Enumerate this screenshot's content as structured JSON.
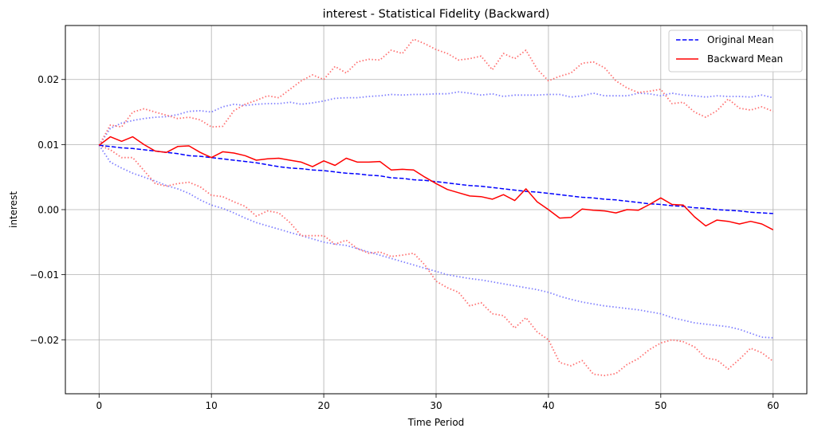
{
  "chart_data": {
    "type": "line",
    "title": "interest - Statistical Fidelity (Backward)",
    "xlabel": "Time Period",
    "ylabel": "interest",
    "xlim": [
      -3,
      63
    ],
    "ylim": [
      -0.0283,
      0.0283
    ],
    "xticks": [
      0,
      10,
      20,
      30,
      40,
      50,
      60
    ],
    "yticks": [
      -0.02,
      -0.01,
      0.0,
      0.01,
      0.02
    ],
    "xtick_labels": [
      "0",
      "10",
      "20",
      "30",
      "40",
      "50",
      "60"
    ],
    "ytick_labels": [
      "−0.02",
      "−0.01",
      "0.00",
      "0.01",
      "0.02"
    ],
    "grid": true,
    "legend_position": "top-right",
    "x": [
      0,
      1,
      2,
      3,
      4,
      5,
      6,
      7,
      8,
      9,
      10,
      11,
      12,
      13,
      14,
      15,
      16,
      17,
      18,
      19,
      20,
      21,
      22,
      23,
      24,
      25,
      26,
      27,
      28,
      29,
      30,
      31,
      32,
      33,
      34,
      35,
      36,
      37,
      38,
      39,
      40,
      41,
      42,
      43,
      44,
      45,
      46,
      47,
      48,
      49,
      50,
      51,
      52,
      53,
      54,
      55,
      56,
      57,
      58,
      59,
      60
    ],
    "series": [
      {
        "name": "Original Mean",
        "style": "dashed",
        "color": "#0000ff",
        "in_legend": true,
        "values": [
          0.0099,
          0.0097,
          0.0095,
          0.0094,
          0.0092,
          0.009,
          0.0088,
          0.0086,
          0.0083,
          0.0082,
          0.008,
          0.0078,
          0.0076,
          0.0074,
          0.0072,
          0.0069,
          0.0066,
          0.0064,
          0.0063,
          0.0061,
          0.006,
          0.0058,
          0.0056,
          0.0055,
          0.0053,
          0.0052,
          0.0049,
          0.0048,
          0.0046,
          0.0045,
          0.0043,
          0.0041,
          0.0039,
          0.0037,
          0.0036,
          0.0034,
          0.0032,
          0.003,
          0.0028,
          0.0027,
          0.0025,
          0.0023,
          0.0021,
          0.0019,
          0.0018,
          0.0016,
          0.0015,
          0.0013,
          0.0011,
          0.0009,
          0.0008,
          0.0006,
          0.0005,
          0.0003,
          0.0002,
          0.0,
          -0.0001,
          -0.0002,
          -0.0004,
          -0.0005,
          -0.0006
        ]
      },
      {
        "name": "Backward Mean",
        "style": "solid",
        "color": "#ff0000",
        "in_legend": true,
        "values": [
          0.0099,
          0.0112,
          0.0105,
          0.0112,
          0.01,
          0.009,
          0.0088,
          0.0097,
          0.0098,
          0.0088,
          0.008,
          0.0089,
          0.0087,
          0.0083,
          0.0076,
          0.0078,
          0.0079,
          0.0076,
          0.0073,
          0.0066,
          0.0075,
          0.0068,
          0.0079,
          0.0073,
          0.0073,
          0.0074,
          0.0061,
          0.0062,
          0.0061,
          0.005,
          0.004,
          0.0031,
          0.0026,
          0.0021,
          0.002,
          0.0016,
          0.0023,
          0.0014,
          0.0032,
          0.0012,
          0.0,
          -0.0013,
          -0.0012,
          0.0001,
          -0.0001,
          -0.0002,
          -0.0005,
          0.0,
          -0.0001,
          0.0008,
          0.0018,
          0.0008,
          0.0007,
          -0.0011,
          -0.0025,
          -0.0016,
          -0.0018,
          -0.0022,
          -0.0018,
          -0.0022,
          -0.0031
        ]
      },
      {
        "name": "",
        "style": "dotted",
        "color": "#8080ff",
        "in_legend": false,
        "values": [
          0.0099,
          0.0125,
          0.0133,
          0.0137,
          0.014,
          0.0142,
          0.0143,
          0.0146,
          0.0151,
          0.0152,
          0.015,
          0.0158,
          0.0162,
          0.016,
          0.0162,
          0.0163,
          0.0163,
          0.0165,
          0.0162,
          0.0164,
          0.0167,
          0.0171,
          0.0172,
          0.0172,
          0.0174,
          0.0175,
          0.0177,
          0.0176,
          0.0177,
          0.0177,
          0.0178,
          0.0178,
          0.0181,
          0.0179,
          0.0176,
          0.0178,
          0.0174,
          0.0176,
          0.0176,
          0.0176,
          0.0177,
          0.0177,
          0.0173,
          0.0175,
          0.0179,
          0.0175,
          0.0175,
          0.0175,
          0.0179,
          0.0178,
          0.0175,
          0.0179,
          0.0176,
          0.0175,
          0.0173,
          0.0175,
          0.0174,
          0.0174,
          0.0173,
          0.0176,
          0.0172
        ]
      },
      {
        "name": "",
        "style": "dotted",
        "color": "#8080ff",
        "in_legend": false,
        "values": [
          0.0099,
          0.0073,
          0.0064,
          0.0056,
          0.005,
          0.0044,
          0.0037,
          0.0032,
          0.0025,
          0.0015,
          0.0007,
          0.0002,
          -0.0005,
          -0.0013,
          -0.002,
          -0.0025,
          -0.003,
          -0.0035,
          -0.004,
          -0.0045,
          -0.005,
          -0.0053,
          -0.0055,
          -0.006,
          -0.0065,
          -0.007,
          -0.0075,
          -0.008,
          -0.0085,
          -0.009,
          -0.0095,
          -0.01,
          -0.0103,
          -0.0106,
          -0.0108,
          -0.0111,
          -0.0114,
          -0.0117,
          -0.012,
          -0.0123,
          -0.0127,
          -0.0133,
          -0.0138,
          -0.0142,
          -0.0145,
          -0.0148,
          -0.015,
          -0.0152,
          -0.0154,
          -0.0157,
          -0.016,
          -0.0166,
          -0.017,
          -0.0174,
          -0.0176,
          -0.0178,
          -0.018,
          -0.0184,
          -0.019,
          -0.0196,
          -0.0197
        ]
      },
      {
        "name": "",
        "style": "dotted",
        "color": "#ff7070",
        "in_legend": false,
        "values": [
          0.0099,
          0.013,
          0.0127,
          0.015,
          0.0155,
          0.015,
          0.0145,
          0.014,
          0.0142,
          0.0138,
          0.0127,
          0.0128,
          0.0152,
          0.0162,
          0.0168,
          0.0175,
          0.0172,
          0.0185,
          0.0198,
          0.0207,
          0.02,
          0.022,
          0.021,
          0.0227,
          0.0231,
          0.023,
          0.0245,
          0.024,
          0.0262,
          0.0255,
          0.0246,
          0.024,
          0.023,
          0.0232,
          0.0236,
          0.0215,
          0.024,
          0.0232,
          0.0245,
          0.0216,
          0.0198,
          0.0205,
          0.021,
          0.0225,
          0.0227,
          0.0218,
          0.0198,
          0.0187,
          0.018,
          0.0182,
          0.0185,
          0.0163,
          0.0165,
          0.015,
          0.0142,
          0.0152,
          0.017,
          0.0156,
          0.0153,
          0.0158,
          0.0151
        ]
      },
      {
        "name": "",
        "style": "dotted",
        "color": "#ff7070",
        "in_legend": false,
        "values": [
          0.0099,
          0.0092,
          0.008,
          0.008,
          0.006,
          0.004,
          0.0036,
          0.004,
          0.0042,
          0.0035,
          0.0022,
          0.002,
          0.0012,
          0.0005,
          -0.001,
          -0.0002,
          -0.0005,
          -0.002,
          -0.004,
          -0.004,
          -0.004,
          -0.0053,
          -0.0047,
          -0.006,
          -0.0067,
          -0.0065,
          -0.0072,
          -0.007,
          -0.0067,
          -0.0085,
          -0.011,
          -0.012,
          -0.0127,
          -0.0148,
          -0.0143,
          -0.016,
          -0.0163,
          -0.0182,
          -0.0166,
          -0.0188,
          -0.02,
          -0.0235,
          -0.024,
          -0.0232,
          -0.0253,
          -0.0255,
          -0.0252,
          -0.0238,
          -0.0229,
          -0.0215,
          -0.0205,
          -0.02,
          -0.0203,
          -0.0211,
          -0.0228,
          -0.0231,
          -0.0245,
          -0.023,
          -0.0213,
          -0.022,
          -0.0233
        ]
      }
    ]
  }
}
